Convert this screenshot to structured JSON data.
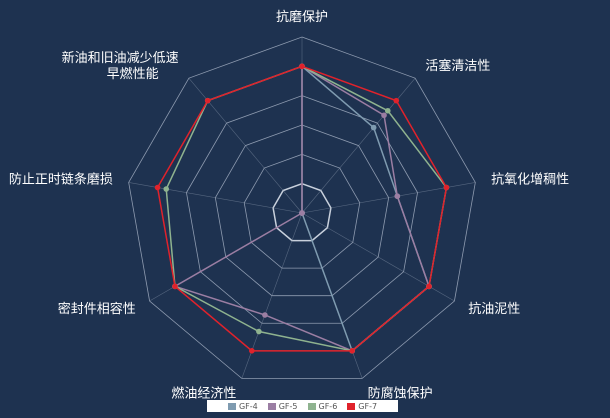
{
  "chart_data": {
    "type": "radar",
    "indicators": [
      "抗磨保护",
      "活塞清洁性",
      "抗氧化增稠性",
      "抗油泥性",
      "防腐蚀保护",
      "燃油经济性",
      "密封件相容性",
      "防止正时链条磨损",
      "新油和旧油减少低速早燃性能"
    ],
    "indicator_lines": [
      [
        "抗磨保护"
      ],
      [
        "活塞清洁性"
      ],
      [
        "抗氧化增稠性"
      ],
      [
        "抗油泥性"
      ],
      [
        "防腐蚀保护"
      ],
      [
        "燃油经济性"
      ],
      [
        "密封件相容性"
      ],
      [
        "防止正时链条磨损"
      ],
      [
        "新油和旧油减少低速",
        "早燃性能"
      ]
    ],
    "max": 6,
    "rings": 6,
    "series": [
      {
        "name": "GF-4",
        "color": "#7f9bb0",
        "values": [
          5,
          3.8,
          3.3,
          5,
          5,
          0,
          0,
          0,
          0
        ]
      },
      {
        "name": "GF-5",
        "color": "#9b7ea3",
        "values": [
          5,
          4.35,
          3.3,
          5,
          5,
          3.7,
          5,
          0,
          0
        ]
      },
      {
        "name": "GF-6",
        "color": "#8fb38f",
        "values": [
          5,
          4.55,
          5,
          5,
          5,
          4.3,
          5,
          4.7,
          5
        ]
      },
      {
        "name": "GF-7",
        "color": "#e0222b",
        "values": [
          5,
          5,
          5,
          5,
          5,
          5,
          5,
          5,
          5
        ]
      }
    ],
    "legend_position": "bottom"
  }
}
